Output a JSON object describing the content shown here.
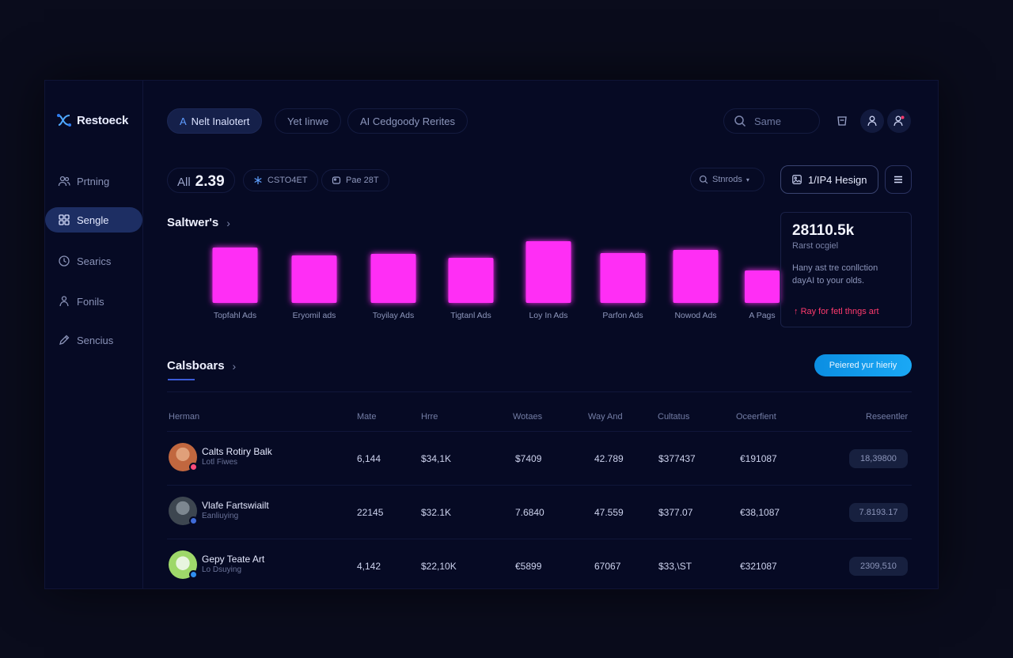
{
  "app": {
    "name": "Restoeck"
  },
  "sidebar": {
    "items": [
      {
        "label": "Prtning",
        "icon": "users-icon"
      },
      {
        "label": "Sengle",
        "icon": "grid-icon",
        "active": true
      },
      {
        "label": "Searics",
        "icon": "clock-icon"
      },
      {
        "label": "Fonils",
        "icon": "person-icon"
      },
      {
        "label": "Sencius",
        "icon": "pen-icon"
      }
    ]
  },
  "header": {
    "tabs": [
      {
        "label": "Nelt Inalotert",
        "prefix": "A",
        "active": true
      },
      {
        "label": "Yet Iinwe"
      },
      {
        "label": "AI Cedgoody Rerites"
      }
    ],
    "search": {
      "placeholder": "Same"
    }
  },
  "stats": {
    "label": "All",
    "value": "2.39",
    "chip1": "CSTO4ET",
    "chip2": "Pae 28T",
    "select": "Stnrods",
    "primary_button": "1/IP4 Hesign"
  },
  "chart_section": {
    "title": "Saltwer's"
  },
  "chart_data": {
    "type": "bar",
    "categories": [
      "Topfahl Ads",
      "Eryomil ads",
      "Toyilay Ads",
      "Tigtanl Ads",
      "Loy In Ads",
      "Parfon Ads",
      "Nowod Ads",
      "A Pags"
    ],
    "values": [
      70,
      60,
      62,
      57,
      78,
      63,
      67,
      41
    ],
    "ylim": [
      0,
      80
    ],
    "bar_color": "#ff2df5"
  },
  "side_card": {
    "value": "28110.5k",
    "subtitle": "Rarst ocgiel",
    "description": "Hany ast tre conllction dayAI to your olds.",
    "link": "Ray for fetl thngs art",
    "link_color": "#ff3a6d"
  },
  "table_section": {
    "title": "Calsboars",
    "cta": "Peiered yur hieriy",
    "columns": [
      "Herman",
      "Mate",
      "Hrre",
      "Wotaes",
      "Way And",
      "Cultatus",
      "Oceerfient",
      "Reseentler"
    ],
    "rows": [
      {
        "name": "Calts Rotiry Balk",
        "sub": "Lotl Fiwes",
        "avatar_color": "#c1673f",
        "dot": "#ff4b7a",
        "cells": [
          "6,144",
          "$34,1K",
          "$7409",
          "42.789",
          "$377437",
          "€191087"
        ],
        "badge": "18,39800"
      },
      {
        "name": "Vlafe Fartswiailt",
        "sub": "Eanliuying",
        "avatar_color": "#4b5661",
        "dot": "#3f6bd8",
        "cells": [
          "22145",
          "$32.1K",
          "7.6840",
          "47.559",
          "$377.07",
          "€38,1087"
        ],
        "badge": "7.8193.17"
      },
      {
        "name": "Gepy Teate Art",
        "sub": "Lo Dsuying",
        "avatar_color": "#9ed86a",
        "dot": "#2f8ff0",
        "cells": [
          "4,142",
          "$22,10K",
          "€5899",
          "67067",
          "$33,\\ST",
          "€321087"
        ],
        "badge": "2309,510"
      }
    ]
  }
}
